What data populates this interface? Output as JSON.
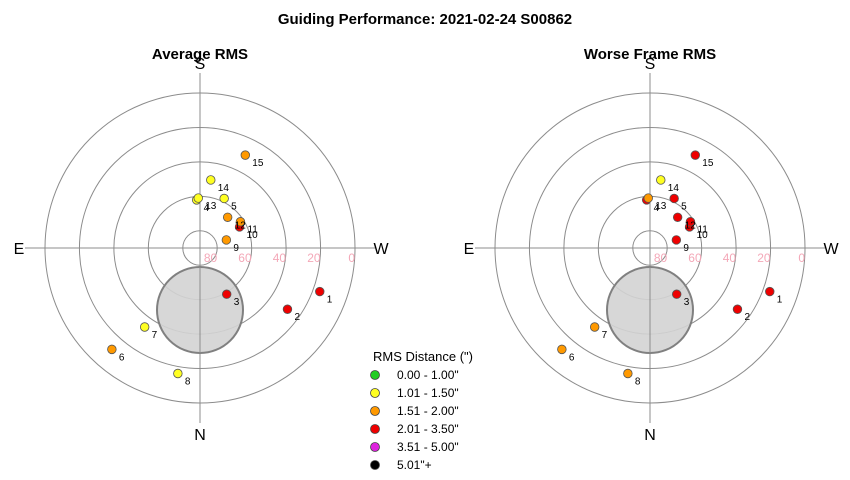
{
  "title": "Guiding Performance: 2021-02-24 S00862",
  "colors": {
    "grid": "#8c8c8c",
    "ring_label": "#f4a8b8",
    "moon_fill": "#d3d3d3",
    "moon_stroke": "#808080"
  },
  "legend": {
    "title": "RMS Distance (\")",
    "items": [
      {
        "label": "0.00 - 1.00\"",
        "color": "#22cc22"
      },
      {
        "label": "1.01 - 1.50\"",
        "color": "#ffff22"
      },
      {
        "label": "1.51 - 2.00\"",
        "color": "#ff9900"
      },
      {
        "label": "2.01 - 3.50\"",
        "color": "#ee0000"
      },
      {
        "label": "3.51 - 5.00\"",
        "color": "#dd22dd"
      },
      {
        "label": "5.01\"+",
        "color": "#000000"
      }
    ]
  },
  "chart_data": [
    {
      "type": "scatter",
      "projection": "polar-sky",
      "title": "Average RMS",
      "directions": {
        "top": "S",
        "bottom": "N",
        "left": "E",
        "right": "W"
      },
      "ring_labels": [
        "80",
        "60",
        "40",
        "20",
        "0"
      ],
      "rings_altitude": [
        90,
        80,
        60,
        40,
        20,
        0
      ],
      "moon": {
        "azimuth": 0,
        "altitude": 54
      },
      "points": [
        {
          "label": "1",
          "azimuth": 290,
          "altitude": 16,
          "color_index": 3
        },
        {
          "label": "2",
          "azimuth": 305,
          "altitude": 28,
          "color_index": 3
        },
        {
          "label": "3",
          "azimuth": 330,
          "altitude": 59,
          "color_index": 3
        },
        {
          "label": "4",
          "azimuth": 176,
          "altitude": 62,
          "color_index": 1
        },
        {
          "label": "5",
          "azimuth": 206,
          "altitude": 58,
          "color_index": 1
        },
        {
          "label": "6",
          "azimuth": 41,
          "altitude": 12,
          "color_index": 2
        },
        {
          "label": "7",
          "azimuth": 35,
          "altitude": 34,
          "color_index": 1
        },
        {
          "label": "8",
          "azimuth": 10,
          "altitude": 16,
          "color_index": 1
        },
        {
          "label": "9",
          "azimuth": 253,
          "altitude": 74,
          "color_index": 2
        },
        {
          "label": "10",
          "azimuth": 242,
          "altitude": 64,
          "color_index": 3
        },
        {
          "label": "11",
          "azimuth": 237,
          "altitude": 62,
          "color_index": 2
        },
        {
          "label": "12",
          "azimuth": 222,
          "altitude": 66,
          "color_index": 2
        },
        {
          "label": "13",
          "azimuth": 178,
          "altitude": 61,
          "color_index": 1
        },
        {
          "label": "14",
          "azimuth": 189,
          "altitude": 50,
          "color_index": 1
        },
        {
          "label": "15",
          "azimuth": 206,
          "altitude": 30,
          "color_index": 2
        }
      ]
    },
    {
      "type": "scatter",
      "projection": "polar-sky",
      "title": "Worse Frame RMS",
      "directions": {
        "top": "S",
        "bottom": "N",
        "left": "E",
        "right": "W"
      },
      "ring_labels": [
        "80",
        "60",
        "40",
        "20",
        "0"
      ],
      "rings_altitude": [
        90,
        80,
        60,
        40,
        20,
        0
      ],
      "moon": {
        "azimuth": 0,
        "altitude": 54
      },
      "points": [
        {
          "label": "1",
          "azimuth": 290,
          "altitude": 16,
          "color_index": 3
        },
        {
          "label": "2",
          "azimuth": 305,
          "altitude": 28,
          "color_index": 3
        },
        {
          "label": "3",
          "azimuth": 330,
          "altitude": 59,
          "color_index": 3
        },
        {
          "label": "4",
          "azimuth": 176,
          "altitude": 62,
          "color_index": 3
        },
        {
          "label": "5",
          "azimuth": 206,
          "altitude": 58,
          "color_index": 3
        },
        {
          "label": "6",
          "azimuth": 41,
          "altitude": 12,
          "color_index": 2
        },
        {
          "label": "7",
          "azimuth": 35,
          "altitude": 34,
          "color_index": 2
        },
        {
          "label": "8",
          "azimuth": 10,
          "altitude": 16,
          "color_index": 2
        },
        {
          "label": "9",
          "azimuth": 253,
          "altitude": 74,
          "color_index": 3
        },
        {
          "label": "10",
          "azimuth": 242,
          "altitude": 64,
          "color_index": 3
        },
        {
          "label": "11",
          "azimuth": 237,
          "altitude": 62,
          "color_index": 3
        },
        {
          "label": "12",
          "azimuth": 222,
          "altitude": 66,
          "color_index": 3
        },
        {
          "label": "13",
          "azimuth": 178,
          "altitude": 61,
          "color_index": 2
        },
        {
          "label": "14",
          "azimuth": 189,
          "altitude": 50,
          "color_index": 1
        },
        {
          "label": "15",
          "azimuth": 206,
          "altitude": 30,
          "color_index": 3
        }
      ]
    }
  ]
}
